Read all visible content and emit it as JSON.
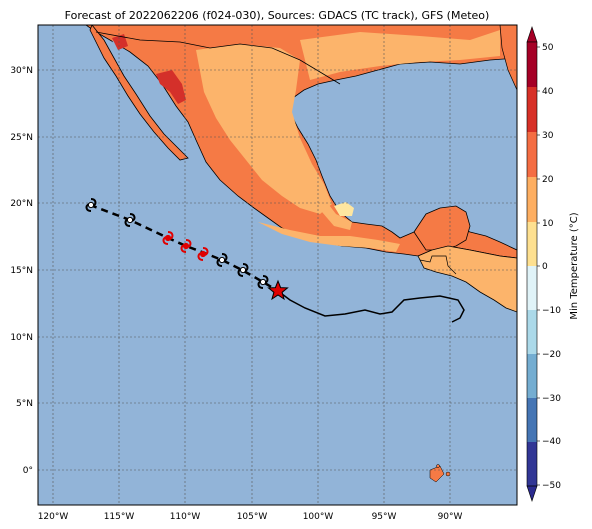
{
  "title": "Forecast of 2022062206 (f024-030), Sources: GDACS (TC track), GFS (Meteo)",
  "axes": {
    "x_ticks": [
      "120°W",
      "115°W",
      "110°W",
      "105°W",
      "100°W",
      "95°W",
      "90°W"
    ],
    "y_ticks": [
      "30°N",
      "25°N",
      "20°N",
      "15°N",
      "10°N",
      "5°N",
      "0°"
    ]
  },
  "colorbar": {
    "label": "Min Temperature (°C)",
    "ticks": [
      "50",
      "40",
      "30",
      "20",
      "10",
      "0",
      "−10",
      "−20",
      "−30",
      "−40",
      "−50"
    ],
    "colors": [
      "#a50026",
      "#d73027",
      "#f46d43",
      "#fdae61",
      "#fee090",
      "#ffffbf",
      "#e0f3f8",
      "#abd9e9",
      "#74add1",
      "#4575b4",
      "#313695",
      "#2b2b8f"
    ]
  },
  "map_colors": {
    "ocean": "#92b4d8",
    "land_warm": "#f57a45",
    "land_mild": "#fcb46b",
    "land_hot": "#d4302a",
    "land_cool": "#fee6a0"
  },
  "track": {
    "forecast_symbols": [
      {
        "color": "#000000",
        "icon": "tropical-storm-icon"
      },
      {
        "color": "#000000",
        "icon": "tropical-storm-icon"
      },
      {
        "color": "#e00000",
        "icon": "hurricane-icon"
      },
      {
        "color": "#e00000",
        "icon": "hurricane-icon"
      },
      {
        "color": "#e00000",
        "icon": "hurricane-icon"
      },
      {
        "color": "#000000",
        "icon": "tropical-storm-icon"
      },
      {
        "color": "#000000",
        "icon": "tropical-storm-icon"
      },
      {
        "color": "#000000",
        "icon": "tropical-storm-icon"
      }
    ],
    "current_position_icon": "star-icon",
    "current_position_color": "#e00000"
  }
}
